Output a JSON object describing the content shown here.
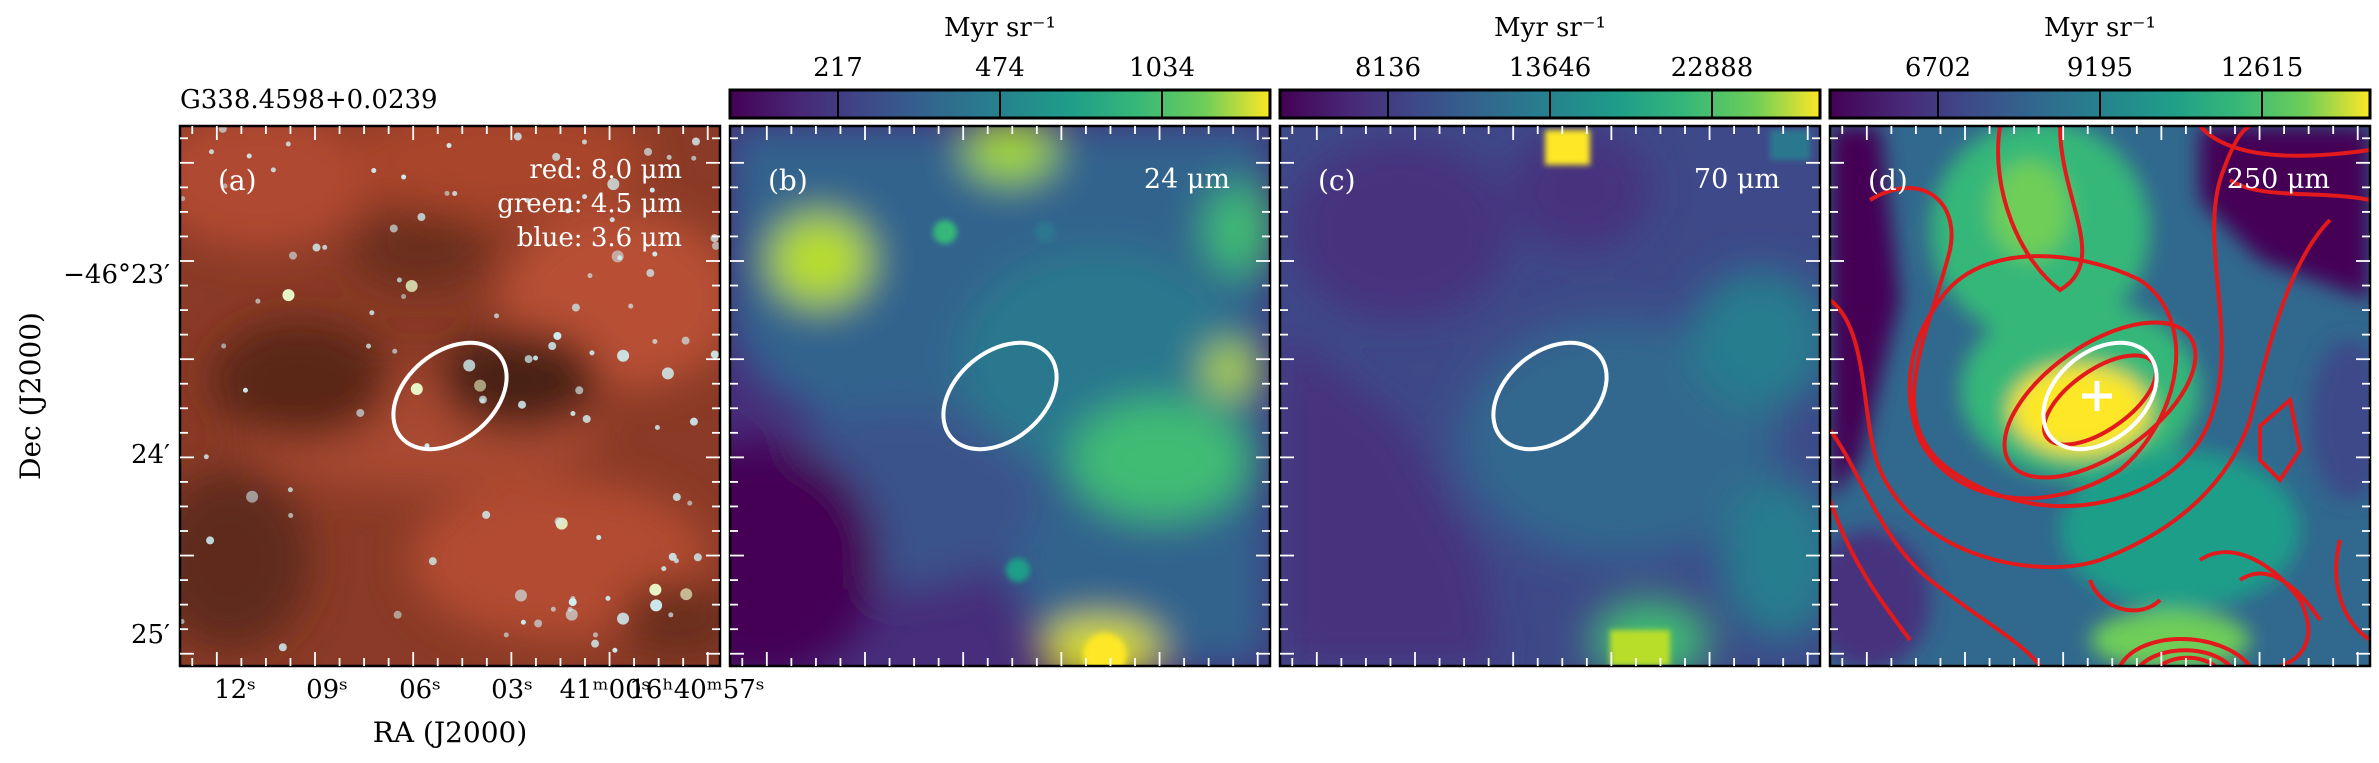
{
  "source_name": "G338.4598+0.0239",
  "panels": [
    {
      "letter": "(a)",
      "legend": [
        "red: 8.0 μm",
        "green: 4.5 μm",
        "blue: 3.6 μm"
      ]
    },
    {
      "letter": "(b)",
      "band": "24 μm",
      "colorbar": {
        "unit": "Myr sr⁻¹",
        "ticks": [
          "217",
          "474",
          "1034"
        ]
      }
    },
    {
      "letter": "(c)",
      "band": "70 μm",
      "colorbar": {
        "unit": "Myr sr⁻¹",
        "ticks": [
          "8136",
          "13646",
          "22888"
        ]
      }
    },
    {
      "letter": "(d)",
      "band": "250 μm",
      "colorbar": {
        "unit": "Myr sr⁻¹",
        "ticks": [
          "6702",
          "9195",
          "12615"
        ]
      }
    }
  ],
  "axes": {
    "ylabel": "Dec (J2000)",
    "xlabel": "RA (J2000)",
    "yticks": [
      "−46°23′",
      "24′",
      "25′"
    ],
    "xticks": [
      "12ˢ",
      "09ˢ",
      "06ˢ",
      "03ˢ",
      "41ᵐ00ˢ",
      "16ʰ40ᵐ57ˢ"
    ]
  },
  "colors": {
    "contour": "#e31a1c",
    "ellipse": "#ffffff",
    "frame": "#000000"
  }
}
